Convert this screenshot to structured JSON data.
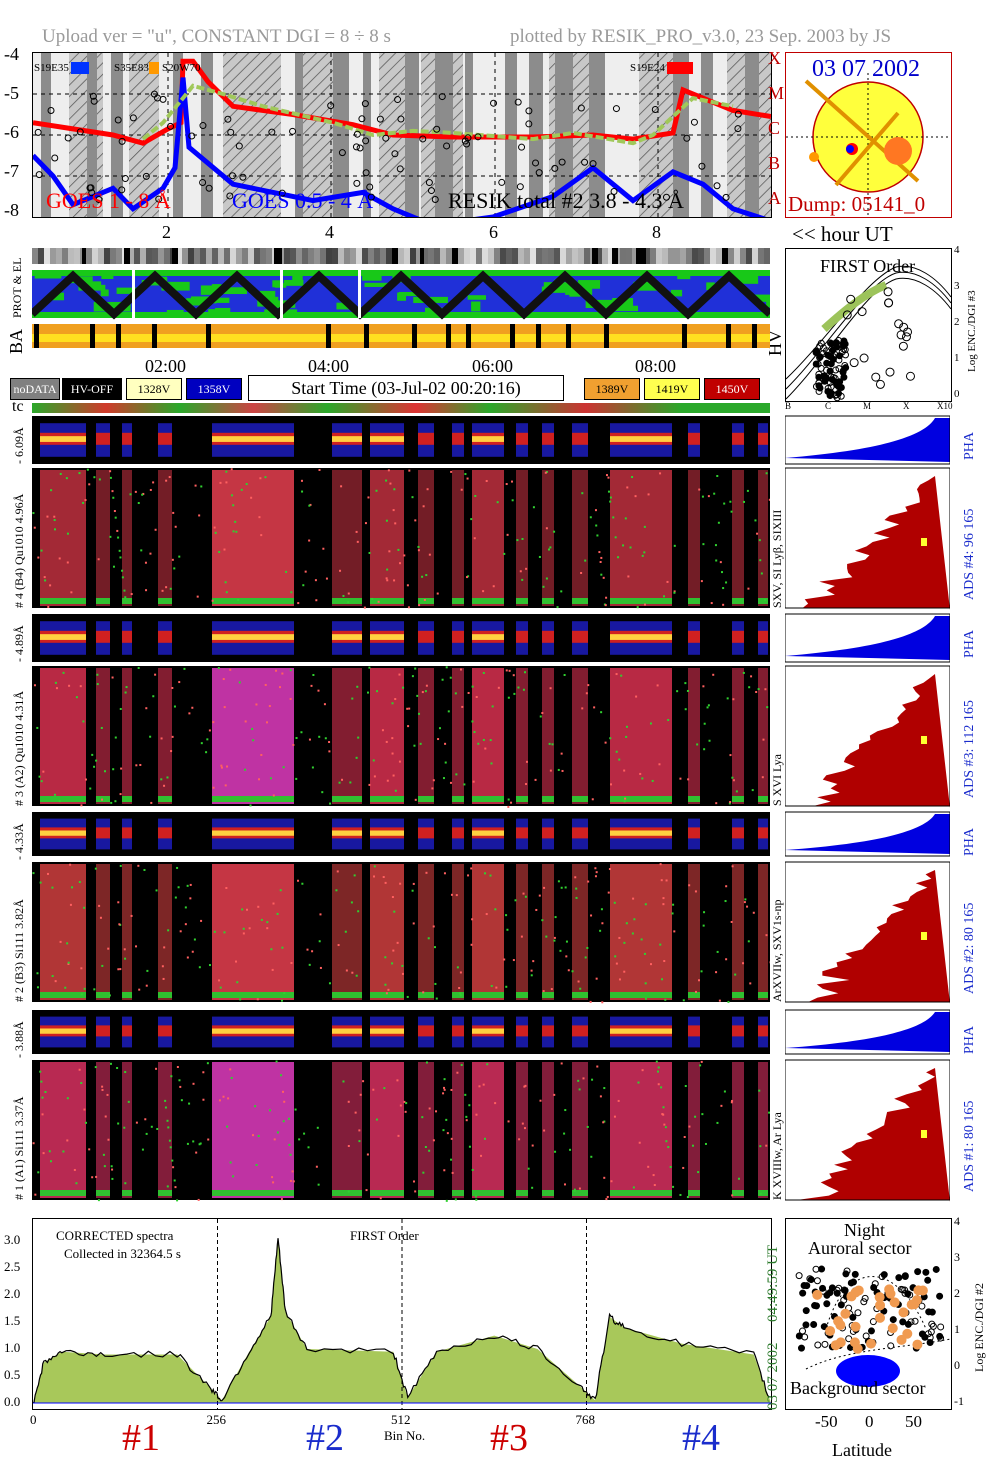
{
  "header": {
    "left": "Upload ver = \"u\", CONSTANT  DGI =   8 ÷   8 s",
    "right": "plotted by RESIK_PRO_v3.0, 23 Sep. 2003 by JS"
  },
  "goes_panel": {
    "yticks": [
      "-4",
      "-5",
      "-6",
      "-7",
      "-8"
    ],
    "class_letters": [
      "X",
      "M",
      "C",
      "B",
      "A"
    ],
    "legend_goes_long": "GOES 1 - 8 Å",
    "legend_goes_short": "GOES 0.5 - 4 Å",
    "legend_resik": "RESIK total #2  3.8 - 4.3 Å",
    "markers": [
      "S19E35",
      "S35E83",
      "S20W70",
      "S19E24"
    ],
    "hour_ticks": [
      "2",
      "4",
      "6",
      "8"
    ],
    "hour_label": "<< hour UT",
    "colors": {
      "goes_long": "#ff0000",
      "goes_short": "#0000ff",
      "resik": "#a0c85a",
      "background": "#e8e8e8"
    }
  },
  "sun_panel": {
    "date": "03 07 2002",
    "dump": "Dump: 05141_0",
    "colors": {
      "disk": "#ffff3c",
      "frame": "#c00000"
    }
  },
  "strips": {
    "prot_label": "PROT & EL",
    "ba_label": "BA",
    "hv_label": "HV"
  },
  "time_bar": {
    "ticks": [
      "02:00",
      "04:00",
      "06:00",
      "08:00"
    ],
    "start_time": "Start Time (03-Jul-02 00:20:16)",
    "badges": [
      {
        "label": "noDATA",
        "bg": "#808080",
        "fg": "#ffffff"
      },
      {
        "label": "HV-OFF",
        "bg": "#000000",
        "fg": "#ffffff"
      },
      {
        "label": "1328V",
        "bg": "#ffffc0",
        "fg": "#000000"
      },
      {
        "label": "1358V",
        "bg": "#0000c0",
        "fg": "#ffffff"
      },
      {
        "label": "1389V",
        "bg": "#f0a030",
        "fg": "#000000"
      },
      {
        "label": "1419V",
        "bg": "#ffff50",
        "fg": "#000000"
      },
      {
        "label": "1450V",
        "bg": "#c00000",
        "fg": "#ffffff"
      }
    ],
    "tc_label": "tc"
  },
  "first_order": {
    "title": "FIRST Order",
    "ylabel": "Log ENC./DGI #3",
    "yticks": [
      "4",
      "3",
      "2",
      "1",
      "0"
    ],
    "xticks": [
      "B",
      "C",
      "M",
      "X",
      "X10"
    ]
  },
  "channels": [
    {
      "pha_label": "6.09Å",
      "spec_label": "# 4 (B4) Qu1010 4.96Å",
      "ions": "SXV, SI Lyβ, SIXIII",
      "ads": "ADS #4:   96 165",
      "pha": "PHA"
    },
    {
      "pha_label": "4.89Å",
      "spec_label": "# 3 (A2) Qu1010 4.31Å",
      "ions": "S XVI Lya",
      "ads": "ADS #3:   112 165",
      "pha": "PHA"
    },
    {
      "pha_label": "4.33Å",
      "spec_label": "# 2 (B3) Si111 3.82Å",
      "ions": "ArXVIIw, SXV1s-np",
      "ads": "ADS #2:   80 165",
      "pha": "PHA"
    },
    {
      "pha_label": "3.88Å",
      "spec_label": "# 1 (A1) Si111 3.37Å",
      "ions": "K XVIIIw, Ar Lya",
      "ads": "ADS #1:   80 165",
      "pha": "PHA"
    }
  ],
  "spectrum": {
    "note1": "CORRECTED spectra",
    "note2": "Collected in 32364.5 s",
    "order": "FIRST Order",
    "yticks": [
      "3.0",
      "2.5",
      "2.0",
      "1.5",
      "1.0",
      "0.5",
      "0.0"
    ],
    "xticks": [
      "0",
      "256",
      "512",
      "768"
    ],
    "xlabel": "Bin No.",
    "date_right": "03 07 2002",
    "time_right": "04:49:59 UT",
    "channel_ids": [
      "#1",
      "#2",
      "#3",
      "#4"
    ]
  },
  "chart_data": {
    "type": "line",
    "title": "",
    "xlabel": "Bin No.",
    "ylabel": "",
    "xlim": [
      0,
      1024
    ],
    "ylim": [
      0,
      3.3
    ],
    "grid": false,
    "series": [
      {
        "name": "CORRECTED spectra",
        "x": [
          0,
          15,
          40,
          100,
          200,
          245,
          262,
          300,
          330,
          340,
          350,
          380,
          500,
          520,
          560,
          640,
          700,
          760,
          780,
          800,
          820,
          900,
          1000,
          1024
        ],
        "y": [
          0.0,
          0.75,
          0.95,
          0.9,
          0.9,
          0.3,
          0.05,
          0.95,
          1.6,
          3.05,
          1.7,
          1.0,
          0.95,
          0.1,
          0.95,
          1.25,
          1.0,
          0.3,
          0.05,
          1.6,
          1.4,
          1.1,
          0.9,
          0.0
        ]
      }
    ]
  },
  "map_panel": {
    "title1": "Night",
    "title2": "Auroral sector",
    "bottom": "Background sector",
    "xticks": [
      "-50",
      "0",
      "50"
    ],
    "xlabel": "Latitude",
    "ylabel": "Log ENC./DGI #2",
    "yticks": [
      "4",
      "3",
      "2",
      "1",
      "0",
      "-1"
    ]
  }
}
